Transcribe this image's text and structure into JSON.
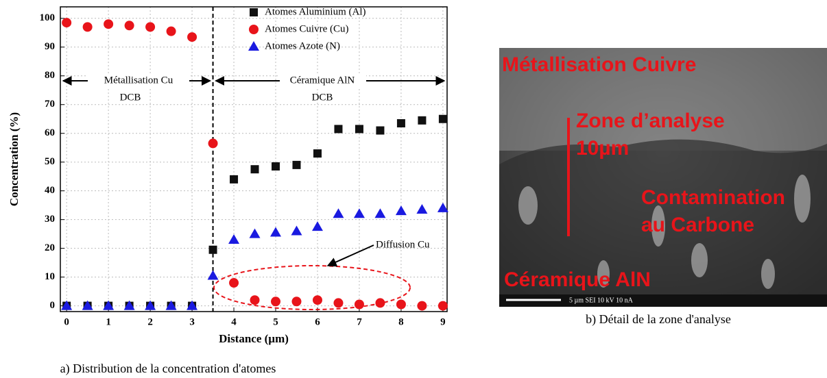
{
  "chart_data": {
    "type": "scatter",
    "xlabel": "Distance (µm)",
    "ylabel": "Concentration (%)",
    "x": [
      0,
      0.5,
      1,
      1.5,
      2,
      2.5,
      3,
      3.5,
      4,
      4.5,
      5,
      5.5,
      6,
      6.5,
      7,
      7.5,
      8,
      8.5,
      9
    ],
    "series": [
      {
        "name": "Atomes Aluminium (Al)",
        "color": "#111111",
        "marker": "square",
        "values": [
          0,
          0,
          0,
          0,
          0,
          0,
          0,
          19.5,
          44,
          47.5,
          48.5,
          49,
          53,
          61.5,
          61.5,
          61,
          63.5,
          64.5,
          65
        ]
      },
      {
        "name": "Atomes Cuivre (Cu)",
        "color": "#e8141a",
        "marker": "circle",
        "values": [
          98.5,
          97,
          98,
          97.5,
          97,
          95.5,
          93.5,
          56.5,
          8,
          2,
          1.5,
          1.5,
          2,
          1,
          0.5,
          1,
          0.5,
          0,
          0
        ]
      },
      {
        "name": "Atomes Azote (N)",
        "color": "#1a1ae0",
        "marker": "triangle",
        "values": [
          0,
          0,
          0,
          0,
          0,
          0,
          0,
          10.5,
          23,
          25,
          25.5,
          26,
          27.5,
          32,
          32,
          32,
          33,
          33.5,
          34
        ]
      }
    ],
    "xlim": [
      -0.15,
      9.1
    ],
    "ylim": [
      -2,
      104
    ],
    "xticks": [
      0,
      1,
      2,
      3,
      4,
      5,
      6,
      7,
      8,
      9
    ],
    "yticks": [
      0,
      10,
      20,
      30,
      40,
      50,
      60,
      70,
      80,
      90,
      100
    ],
    "grid": true,
    "annotations": {
      "left_zone": "Métallisation Cu",
      "left_sub": "DCB",
      "right_zone": "Céramique AlN",
      "right_sub": "DCB",
      "diffusion": "Diffusion Cu"
    },
    "caption": "a) Distribution de la concentration d'atomes"
  },
  "image": {
    "caption": "b) Détail de la zone d'analyse",
    "labels": [
      "Métallisation Cuivre",
      "Zone d’analyse",
      "10µm",
      "Contamination",
      "au Carbone",
      "Céramique AlN"
    ],
    "scale_bar": "5 µm   SEI     10 kV  10 nA"
  }
}
